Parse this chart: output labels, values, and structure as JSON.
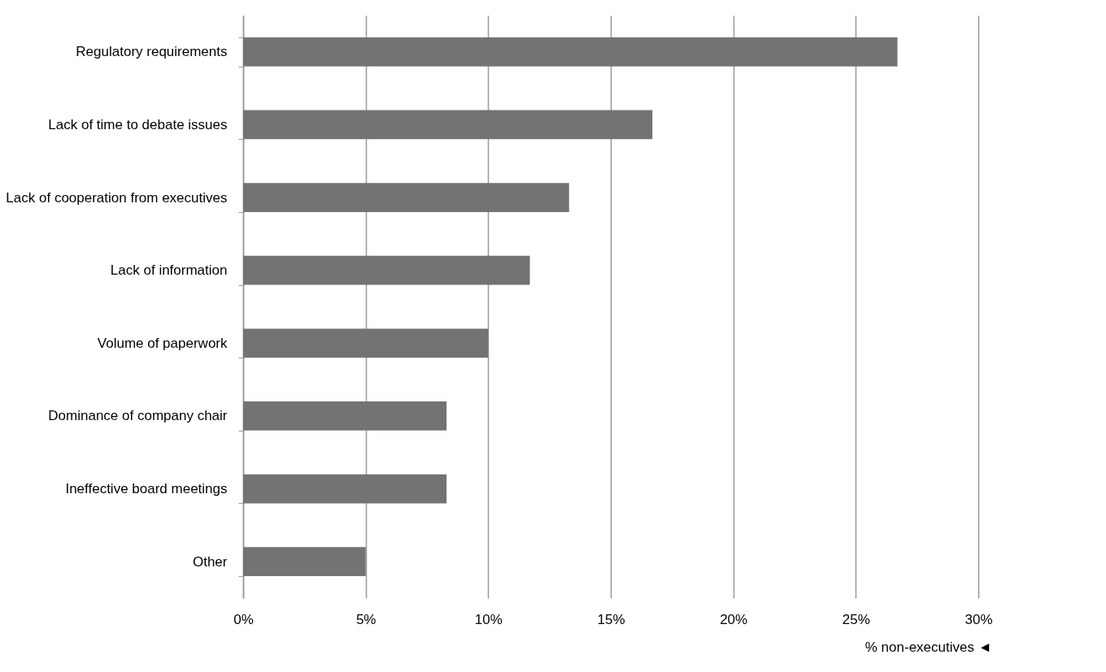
{
  "chart_data": {
    "type": "bar",
    "orientation": "horizontal",
    "xlabel": "% non-executives ◄",
    "categories": [
      "Regulatory requirements",
      "Lack of time to debate issues",
      "Lack of cooperation from executives",
      "Lack of information",
      "Volume of paperwork",
      "Dominance of company chair",
      "Ineffective board meetings",
      "Other"
    ],
    "values": [
      26.7,
      16.7,
      13.3,
      11.7,
      10,
      8.3,
      8.3,
      5
    ],
    "color": "#737373",
    "xlim": [
      0,
      30
    ],
    "xticks": [
      {
        "value": 0,
        "label": "0%"
      },
      {
        "value": 5,
        "label": "5%"
      },
      {
        "value": 10,
        "label": "10%"
      },
      {
        "value": 15,
        "label": "15%"
      },
      {
        "value": 20,
        "label": "20%"
      },
      {
        "value": 25,
        "label": "25%"
      },
      {
        "value": 30,
        "label": "30%"
      }
    ],
    "grid": "x"
  }
}
